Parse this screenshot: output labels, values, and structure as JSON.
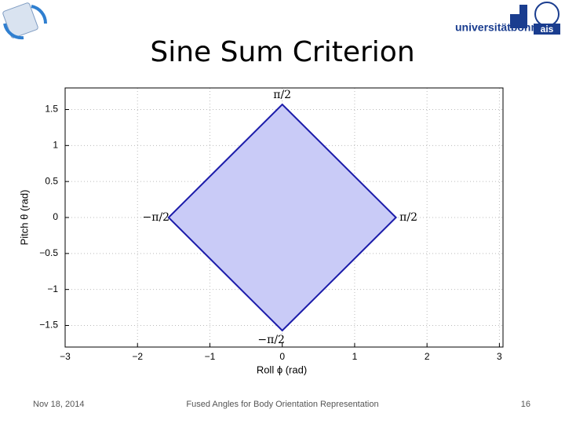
{
  "slide": {
    "logo_text": "universitätbonn",
    "group_text": "ais",
    "date": "Nov 18, 2014",
    "footer": "Fused Angles for Body Orientation Representation",
    "page": "16"
  },
  "chart_data": {
    "type": "area",
    "title": "Sine Sum Criterion",
    "x_label": "Roll ϕ (rad)",
    "y_label": "Pitch θ (rad)",
    "x": [
      1.5708,
      0,
      -1.5708,
      0,
      1.5708
    ],
    "y": [
      0,
      1.5708,
      0,
      -1.5708,
      0
    ],
    "color": "#c9cbf7",
    "line_color": "#1c1caa",
    "annotations": [
      {
        "text": "π/2",
        "x": 1.5708,
        "y": 0
      },
      {
        "text": "π/2",
        "x": 0,
        "y": 1.5708
      },
      {
        "text": "−π/2",
        "x": -1.5708,
        "y": 0
      },
      {
        "text": "−π/2",
        "x": 0,
        "y": -1.5708
      }
    ],
    "xlim": [
      -3,
      3.05
    ],
    "ylim": [
      -1.8,
      1.8
    ],
    "xticks": [
      {
        "value": -3,
        "label": "−3"
      },
      {
        "value": -2,
        "label": "−2"
      },
      {
        "value": -1,
        "label": "−1"
      },
      0,
      1,
      2,
      3
    ],
    "yticks": [
      1.5,
      1,
      0.5,
      0,
      {
        "value": -0.5,
        "label": "−0.5"
      },
      {
        "value": -1,
        "label": "−1"
      },
      {
        "value": -1.5,
        "label": "−1.5"
      }
    ],
    "grid": true
  }
}
